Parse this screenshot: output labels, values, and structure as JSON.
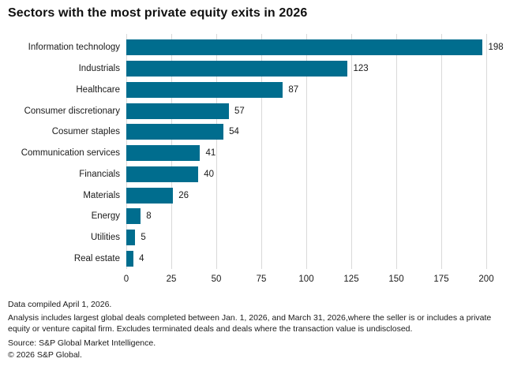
{
  "title": "Sectors with the most private equity exits in 2026",
  "chart_data": {
    "type": "bar",
    "orientation": "horizontal",
    "categories": [
      "Information technology",
      "Industrials",
      "Healthcare",
      "Consumer discretionary",
      "Cosumer staples",
      "Communication services",
      "Financials",
      "Materials",
      "Energy",
      "Utilities",
      "Real estate"
    ],
    "values": [
      198,
      123,
      87,
      57,
      54,
      41,
      40,
      26,
      8,
      5,
      4
    ],
    "value_labels_shown": true,
    "xlim": [
      0,
      200
    ],
    "xticks": [
      0,
      25,
      50,
      75,
      100,
      125,
      150,
      175,
      200
    ],
    "grid": "vertical",
    "legend": "none",
    "bar_color": "#006d8e",
    "gridline_color": "#d9d9d9",
    "text_color": "#1a1a1a"
  },
  "footer": {
    "compiled": "Data compiled April 1, 2026.",
    "analysis": "Analysis includes largest global deals completed between Jan. 1, 2026, and March 31, 2026,where the seller is or includes a private equity or venture capital firm. Excludes terminated deals and deals where the transaction value is undisclosed.",
    "source": "Source: S&P Global Market Intelligence.",
    "copyright": "© 2026 S&P Global."
  }
}
